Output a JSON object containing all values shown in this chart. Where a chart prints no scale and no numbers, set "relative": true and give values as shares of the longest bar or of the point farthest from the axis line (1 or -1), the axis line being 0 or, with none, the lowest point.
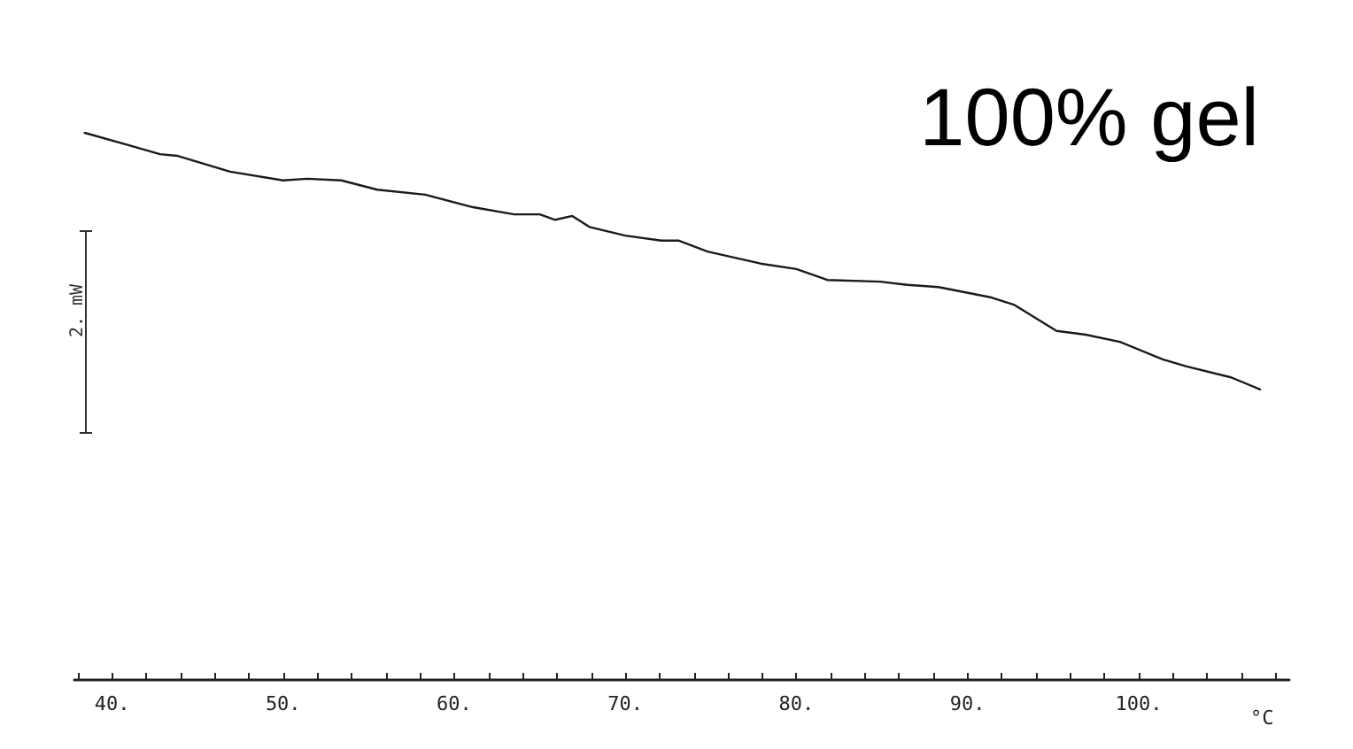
{
  "chart_data": {
    "type": "line",
    "title": "100% gel",
    "xlabel": "°C",
    "relative": true,
    "color": "#1a1a1a",
    "marker": "none",
    "annotations": [
      "2. mW"
    ],
    "xlim": [
      37.8,
      108.8
    ],
    "xticks": [
      {
        "value": 38,
        "label": null
      },
      {
        "value": 40,
        "label": "40."
      },
      {
        "value": 42,
        "label": null
      },
      {
        "value": 44,
        "label": null
      },
      {
        "value": 46,
        "label": null
      },
      {
        "value": 48,
        "label": null
      },
      {
        "value": 50,
        "label": "50."
      },
      {
        "value": 52,
        "label": null
      },
      {
        "value": 54,
        "label": null
      },
      {
        "value": 56,
        "label": null
      },
      {
        "value": 58,
        "label": null
      },
      {
        "value": 60,
        "label": "60."
      },
      {
        "value": 62,
        "label": null
      },
      {
        "value": 64,
        "label": null
      },
      {
        "value": 66,
        "label": null
      },
      {
        "value": 68,
        "label": null
      },
      {
        "value": 70,
        "label": "70."
      },
      {
        "value": 72,
        "label": null
      },
      {
        "value": 74,
        "label": null
      },
      {
        "value": 76,
        "label": null
      },
      {
        "value": 78,
        "label": null
      },
      {
        "value": 80,
        "label": "80."
      },
      {
        "value": 82,
        "label": null
      },
      {
        "value": 84,
        "label": null
      },
      {
        "value": 86,
        "label": null
      },
      {
        "value": 88,
        "label": null
      },
      {
        "value": 90,
        "label": "90."
      },
      {
        "value": 92,
        "label": null
      },
      {
        "value": 94,
        "label": null
      },
      {
        "value": 96,
        "label": null
      },
      {
        "value": 98,
        "label": null
      },
      {
        "value": 100,
        "label": "100."
      },
      {
        "value": 102,
        "label": null
      },
      {
        "value": 104,
        "label": null
      },
      {
        "value": 106,
        "label": null
      },
      {
        "value": 108,
        "label": null
      }
    ],
    "x": [
      38.4,
      41.0,
      42.8,
      43.8,
      46.9,
      50.0,
      51.4,
      53.4,
      55.5,
      58.3,
      61.1,
      63.5,
      65.0,
      65.9,
      66.9,
      67.9,
      70.0,
      72.1,
      73.1,
      74.8,
      77.9,
      80.0,
      81.8,
      84.9,
      86.5,
      88.3,
      91.4,
      92.7,
      95.2,
      96.9,
      98.9,
      101.4,
      102.8,
      105.4,
      107.1
    ],
    "values": [
      1,
      0.977,
      0.961,
      0.958,
      0.929,
      0.913,
      0.916,
      0.913,
      0.896,
      0.887,
      0.864,
      0.851,
      0.851,
      0.841,
      0.848,
      0.828,
      0.812,
      0.803,
      0.803,
      0.783,
      0.761,
      0.751,
      0.731,
      0.728,
      0.722,
      0.718,
      0.699,
      0.686,
      0.638,
      0.631,
      0.618,
      0.586,
      0.573,
      0.553,
      0.531
    ]
  }
}
